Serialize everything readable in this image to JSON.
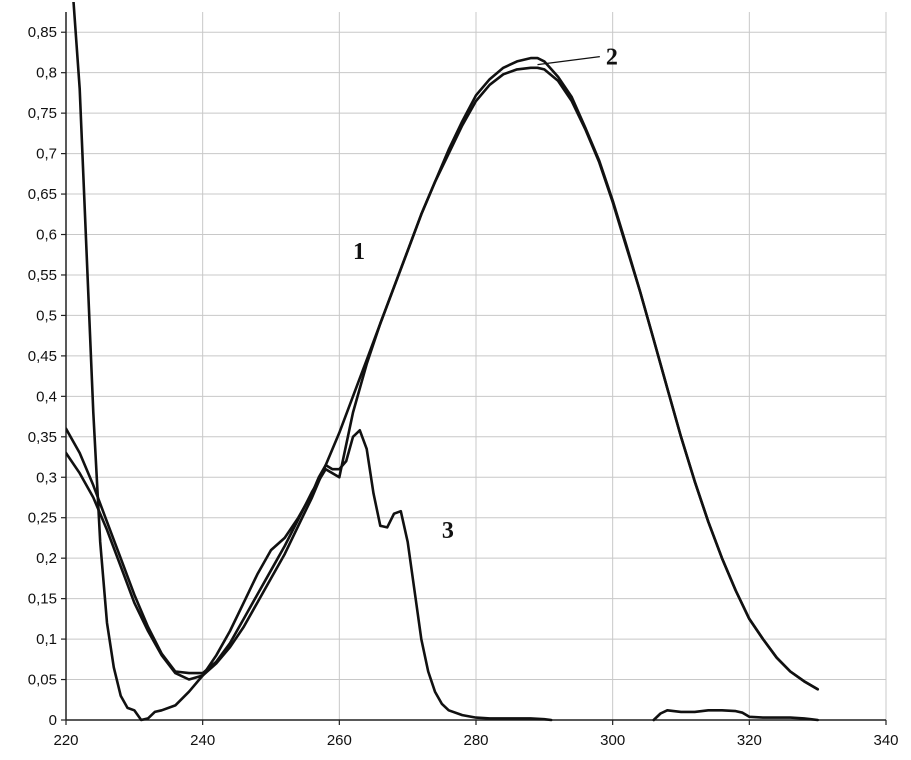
{
  "chart_data": {
    "type": "line",
    "title": "",
    "xlabel": "",
    "ylabel": "",
    "xlim": [
      220,
      340
    ],
    "ylim": [
      0,
      0.875
    ],
    "grid": true,
    "x_ticks": [
      220,
      240,
      260,
      280,
      300,
      320,
      340
    ],
    "x_tick_labels": [
      "220",
      "240",
      "260",
      "280",
      "300",
      "320",
      "340"
    ],
    "y_ticks": [
      0,
      0.05,
      0.1,
      0.15,
      0.2,
      0.25,
      0.3,
      0.35,
      0.4,
      0.45,
      0.5,
      0.55,
      0.6,
      0.65,
      0.7,
      0.75,
      0.8,
      0.85
    ],
    "y_tick_labels": [
      "0",
      "0,05",
      "0,1",
      "0,15",
      "0,2",
      "0,25",
      "0,3",
      "0,35",
      "0,4",
      "0,45",
      "0,5",
      "0,55",
      "0,6",
      "0,65",
      "0,7",
      "0,75",
      "0,8",
      "0,85"
    ],
    "series": [
      {
        "name": "1",
        "color": "#111111",
        "x": [
          220,
          222,
          224,
          226,
          228,
          230,
          232,
          234,
          236,
          238,
          240,
          242,
          244,
          246,
          248,
          250,
          252,
          254,
          256,
          258,
          260,
          262,
          264,
          266,
          268,
          270,
          272,
          274,
          276,
          278,
          280,
          282,
          284,
          286,
          288,
          289,
          290,
          292,
          294,
          296,
          298,
          300,
          302,
          304,
          306,
          308,
          310,
          312,
          314,
          316,
          318,
          320,
          322,
          324,
          326,
          328,
          330
        ],
        "y": [
          0.33,
          0.305,
          0.275,
          0.235,
          0.19,
          0.145,
          0.11,
          0.08,
          0.058,
          0.05,
          0.055,
          0.07,
          0.09,
          0.115,
          0.145,
          0.175,
          0.205,
          0.24,
          0.275,
          0.315,
          0.355,
          0.4,
          0.445,
          0.49,
          0.535,
          0.58,
          0.625,
          0.665,
          0.7,
          0.735,
          0.765,
          0.785,
          0.798,
          0.804,
          0.806,
          0.806,
          0.804,
          0.79,
          0.765,
          0.73,
          0.69,
          0.64,
          0.585,
          0.53,
          0.47,
          0.41,
          0.35,
          0.295,
          0.245,
          0.2,
          0.16,
          0.125,
          0.1,
          0.077,
          0.06,
          0.048,
          0.038
        ]
      },
      {
        "name": "2",
        "color": "#111111",
        "x": [
          220,
          222,
          224,
          226,
          228,
          230,
          232,
          234,
          236,
          238,
          240,
          242,
          244,
          246,
          248,
          250,
          252,
          254,
          256,
          258,
          260,
          262,
          264,
          266,
          268,
          270,
          272,
          274,
          276,
          278,
          280,
          282,
          284,
          286,
          288,
          289,
          290,
          292,
          294,
          296,
          298,
          300,
          302,
          304,
          306,
          308,
          310,
          312,
          314,
          316,
          318,
          320,
          322,
          324,
          326,
          328,
          330
        ],
        "y": [
          0.36,
          0.33,
          0.29,
          0.245,
          0.2,
          0.155,
          0.115,
          0.082,
          0.06,
          0.058,
          0.058,
          0.072,
          0.095,
          0.125,
          0.155,
          0.185,
          0.215,
          0.248,
          0.282,
          0.31,
          0.3,
          0.38,
          0.44,
          0.49,
          0.535,
          0.58,
          0.625,
          0.665,
          0.705,
          0.74,
          0.772,
          0.792,
          0.806,
          0.814,
          0.818,
          0.818,
          0.814,
          0.795,
          0.77,
          0.732,
          0.692,
          0.642,
          0.587,
          0.53,
          0.47,
          0.41,
          0.35,
          0.295,
          0.245,
          0.2,
          0.16,
          0.125,
          0.1,
          0.077,
          0.06,
          0.048,
          0.038
        ]
      },
      {
        "name": "3",
        "color": "#111111",
        "x": [
          221,
          222,
          223,
          224,
          225,
          226,
          227,
          228,
          229,
          230,
          231,
          232,
          233,
          234,
          236,
          238,
          240,
          242,
          244,
          246,
          248,
          250,
          252,
          254,
          256,
          257,
          258,
          259,
          260,
          261,
          262,
          263,
          264,
          265,
          266,
          267,
          268,
          269,
          270,
          271,
          272,
          273,
          274,
          275,
          276,
          278,
          280,
          282,
          284,
          286,
          288,
          290,
          291
        ],
        "y": [
          0.9,
          0.78,
          0.58,
          0.38,
          0.22,
          0.12,
          0.065,
          0.03,
          0.015,
          0.012,
          0.0,
          0.002,
          0.01,
          0.012,
          0.018,
          0.035,
          0.055,
          0.08,
          0.11,
          0.145,
          0.18,
          0.21,
          0.225,
          0.25,
          0.28,
          0.3,
          0.315,
          0.31,
          0.31,
          0.32,
          0.35,
          0.358,
          0.335,
          0.28,
          0.24,
          0.238,
          0.255,
          0.258,
          0.22,
          0.16,
          0.1,
          0.06,
          0.035,
          0.02,
          0.012,
          0.006,
          0.003,
          0.002,
          0.002,
          0.002,
          0.002,
          0.001,
          0.0
        ]
      },
      {
        "name": "",
        "color": "#111111",
        "x": [
          306,
          307,
          308,
          310,
          312,
          314,
          316,
          318,
          319,
          320,
          322,
          324,
          326,
          328,
          329,
          330
        ],
        "y": [
          0.0,
          0.008,
          0.012,
          0.01,
          0.01,
          0.012,
          0.012,
          0.011,
          0.009,
          0.004,
          0.003,
          0.003,
          0.003,
          0.002,
          0.001,
          0.0
        ]
      }
    ],
    "annotations": [
      {
        "text": "1",
        "x": 262,
        "y": 0.57
      },
      {
        "text": "2",
        "x": 299,
        "y": 0.81
      },
      {
        "text": "3",
        "x": 275,
        "y": 0.225
      }
    ]
  }
}
